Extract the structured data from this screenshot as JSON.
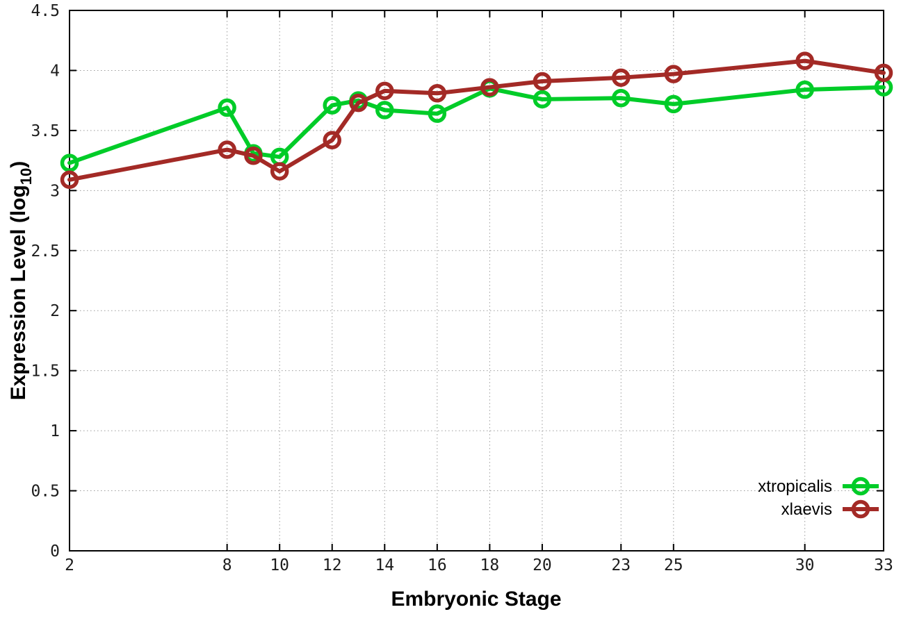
{
  "chart_data": {
    "type": "line",
    "title": "",
    "xlabel": "Embryonic Stage",
    "ylabel": "Expression Level (log10)",
    "ylabel_parts": {
      "main": "Expression Level (log",
      "sub": "10",
      "end": ")"
    },
    "x": [
      2,
      8,
      9,
      10,
      12,
      13,
      14,
      16,
      18,
      20,
      23,
      25,
      30,
      33
    ],
    "series": [
      {
        "name": "xtropicalis",
        "color": "#00cc28",
        "values": [
          3.23,
          3.69,
          3.31,
          3.28,
          3.71,
          3.75,
          3.67,
          3.64,
          3.85,
          3.76,
          3.77,
          3.72,
          3.84,
          3.86
        ]
      },
      {
        "name": "xlaevis",
        "color": "#a32a26",
        "values": [
          3.09,
          3.34,
          3.29,
          3.16,
          3.42,
          3.73,
          3.83,
          3.81,
          3.86,
          3.91,
          3.94,
          3.97,
          4.08,
          3.98
        ]
      }
    ],
    "xlim": [
      2,
      33
    ],
    "ylim": [
      0,
      4.5
    ],
    "xticks": [
      2,
      8,
      10,
      12,
      14,
      16,
      18,
      20,
      23,
      25,
      30,
      33
    ],
    "xtick_labels": [
      "2",
      "8",
      "10",
      "12",
      "14",
      "16",
      "18",
      "20",
      "23",
      "25",
      "30",
      "33"
    ],
    "yticks": [
      0,
      0.5,
      1,
      1.5,
      2,
      2.5,
      3,
      3.5,
      4,
      4.5
    ],
    "ytick_labels": [
      "0",
      "0.5",
      "1",
      "1.5",
      "2",
      "2.5",
      "3",
      "3.5",
      "4",
      "4.5"
    ],
    "grid": true,
    "legend_position": "bottom-right",
    "colors": {
      "background": "#ffffff",
      "border": "#000000",
      "grid": "#9a9a9a",
      "tick_label": "#1c1c1c"
    }
  }
}
